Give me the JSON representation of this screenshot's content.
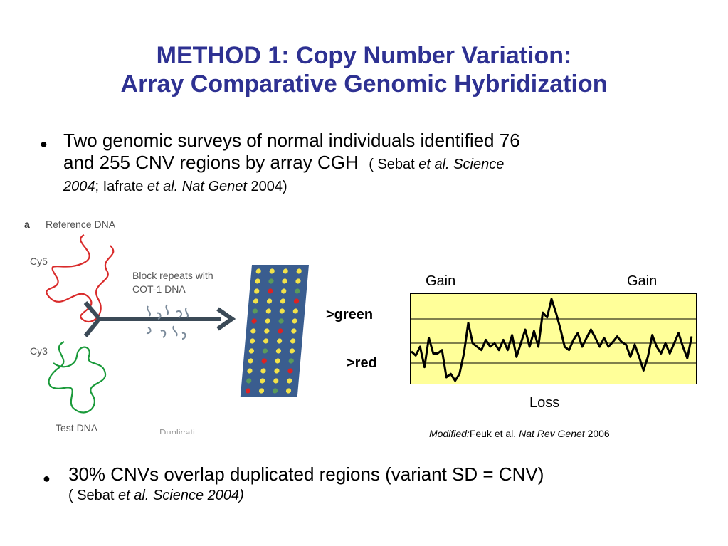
{
  "title": {
    "line1": "METHOD 1: Copy Number Variation:",
    "line2": "Array Comparative Genomic Hybridization"
  },
  "bullet1": {
    "line1": "Two genomic surveys of normal individuals identified 76",
    "line2": "and 255 CNV regions by array CGH",
    "ref_open": "( Sebat ",
    "ref_etal1": "et al. Science",
    "ref_year1": "2004",
    "ref_sep": "; Iafrate ",
    "ref_etal2": "et al. Nat Genet",
    "ref_close": " 2004)"
  },
  "figure_a": {
    "panel_letter": "a",
    "reference_label": "Reference DNA",
    "cy5_label": "Cy5",
    "cy3_label": "Cy3",
    "block_label_line1": "Block repeats with",
    "block_label_line2": "COT-1 DNA",
    "test_label": "Test DNA",
    "cut_text": "Duplicati"
  },
  "plot": {
    "gain_left": "Gain",
    "gain_right": "Gain",
    "green_label": ">green",
    "red_label": ">red",
    "loss_label": "Loss",
    "background": "#ffff99",
    "trace": [
      0.38,
      0.32,
      0.45,
      0.15,
      0.58,
      0.35,
      0.35,
      0.4,
      0.0,
      0.05,
      -0.05,
      0.05,
      0.35,
      0.8,
      0.5,
      0.45,
      0.4,
      0.55,
      0.45,
      0.5,
      0.4,
      0.55,
      0.4,
      0.62,
      0.3,
      0.5,
      0.7,
      0.45,
      0.68,
      0.45,
      0.95,
      0.88,
      1.15,
      0.95,
      0.72,
      0.45,
      0.4,
      0.55,
      0.65,
      0.45,
      0.58,
      0.7,
      0.58,
      0.45,
      0.58,
      0.45,
      0.52,
      0.6,
      0.52,
      0.48,
      0.3,
      0.48,
      0.3,
      0.1,
      0.3,
      0.62,
      0.45,
      0.35,
      0.5,
      0.35,
      0.5,
      0.65,
      0.45,
      0.28,
      0.6
    ]
  },
  "credit": {
    "modified": "Modified:",
    "authors": "Feuk et al. ",
    "journal": "Nat Rev Genet",
    "year": " 2006"
  },
  "bullet2": {
    "line1": "30% CNVs overlap duplicated regions (variant SD = CNV)",
    "ref_open": "( Sebat ",
    "ref_etal": "et al. Science 2004)"
  }
}
